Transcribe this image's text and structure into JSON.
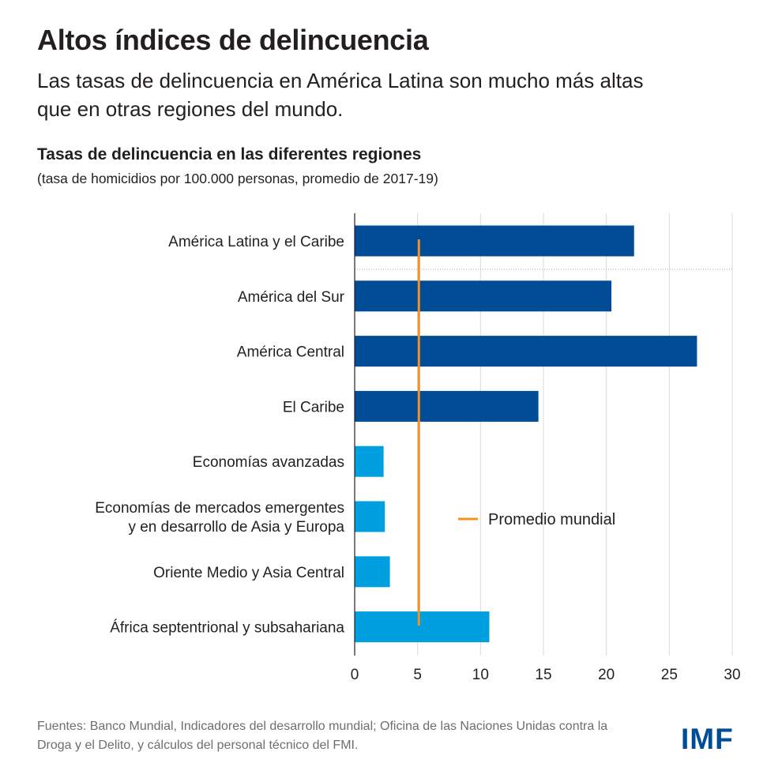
{
  "header": {
    "title": "Altos índices de delincuencia",
    "subtitle": "Las tasas de delincuencia en América Latina son mucho más altas que en otras regiones del mundo."
  },
  "chart_data": {
    "type": "bar",
    "orientation": "horizontal",
    "title": "Tasas de delincuencia en las diferentes regiones",
    "subtitle": "(tasa de homicidios por 100.000 personas, promedio de 2017-19)",
    "categories": [
      [
        "América Latina y el Caribe"
      ],
      [
        "América del Sur"
      ],
      [
        "América Central"
      ],
      [
        "El Caribe"
      ],
      [
        "Economías avanzadas"
      ],
      [
        "Economías de mercados emergentes",
        "y en desarrollo de Asia y Europa"
      ],
      [
        "Oriente Medio y Asia Central"
      ],
      [
        "África septentrional y subsahariana"
      ]
    ],
    "values": [
      22.2,
      20.4,
      27.2,
      14.6,
      2.3,
      2.4,
      2.8,
      10.7
    ],
    "bar_colors": [
      "#004c97",
      "#004c97",
      "#004c97",
      "#004c97",
      "#009fdf",
      "#009fdf",
      "#009fdf",
      "#009fdf"
    ],
    "reference_line": {
      "name": "Promedio mundial",
      "value": 5.1,
      "color": "#f7901e"
    },
    "xlim": [
      0,
      30
    ],
    "xticks": [
      0,
      5,
      10,
      15,
      20,
      25,
      30
    ],
    "grid": true,
    "legend_position": "inside-right"
  },
  "footer": {
    "source": "Fuentes: Banco Mundial, Indicadores del desarrollo mundial; Oficina de las Naciones Unidas contra la Droga y el Delito, y cálculos del personal técnico del FMI.",
    "logo_text": "IMF",
    "logo_color": "#004c97"
  }
}
